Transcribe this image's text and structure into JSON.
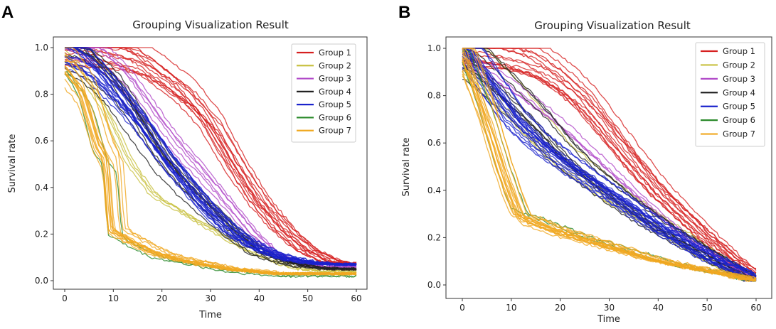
{
  "panels": [
    {
      "letter": "A"
    },
    {
      "letter": "B"
    }
  ],
  "chart_data": [
    {
      "type": "line",
      "title": "Grouping Visualization Result",
      "xlabel": "Time",
      "ylabel": "Survival rate",
      "xlim": [
        0,
        60
      ],
      "ylim": [
        0.0,
        1.0
      ],
      "xticks": [
        "0",
        "10",
        "20",
        "30",
        "40",
        "50",
        "60"
      ],
      "yticks": [
        "0.0",
        "0.2",
        "0.4",
        "0.6",
        "0.8",
        "1.0"
      ],
      "legend_position": "top-right",
      "series": [
        {
          "name": "Group 1",
          "color": "#d62020",
          "count": 14,
          "x": [
            0,
            5,
            10,
            15,
            20,
            25,
            30,
            35,
            40,
            45,
            50,
            55,
            60
          ],
          "y": [
            1.0,
            0.99,
            0.98,
            0.95,
            0.88,
            0.8,
            0.68,
            0.5,
            0.34,
            0.22,
            0.13,
            0.08,
            0.07
          ]
        },
        {
          "name": "Group 2",
          "color": "#c8c040",
          "count": 4,
          "x": [
            0,
            5,
            10,
            15,
            20,
            25,
            30,
            35,
            40,
            45,
            50,
            55,
            60
          ],
          "y": [
            0.98,
            0.88,
            0.72,
            0.5,
            0.36,
            0.3,
            0.24,
            0.18,
            0.12,
            0.08,
            0.05,
            0.04,
            0.04
          ]
        },
        {
          "name": "Group 3",
          "color": "#b048c8",
          "count": 6,
          "x": [
            0,
            5,
            10,
            15,
            20,
            25,
            30,
            35,
            40,
            45,
            50,
            55,
            60
          ],
          "y": [
            1.0,
            0.97,
            0.92,
            0.82,
            0.68,
            0.55,
            0.44,
            0.32,
            0.2,
            0.11,
            0.07,
            0.06,
            0.06
          ]
        },
        {
          "name": "Group 4",
          "color": "#222222",
          "count": 10,
          "x": [
            0,
            5,
            10,
            15,
            20,
            25,
            30,
            35,
            40,
            45,
            50,
            55,
            60
          ],
          "y": [
            0.99,
            0.94,
            0.84,
            0.68,
            0.52,
            0.4,
            0.3,
            0.2,
            0.12,
            0.08,
            0.06,
            0.05,
            0.05
          ]
        },
        {
          "name": "Group 5",
          "color": "#1a22cc",
          "count": 18,
          "x": [
            0,
            5,
            10,
            15,
            20,
            25,
            30,
            35,
            40,
            45,
            50,
            55,
            60
          ],
          "y": [
            0.99,
            0.93,
            0.82,
            0.7,
            0.55,
            0.42,
            0.3,
            0.2,
            0.14,
            0.1,
            0.08,
            0.07,
            0.07
          ]
        },
        {
          "name": "Group 6",
          "color": "#2a8a2a",
          "count": 2,
          "x": [
            0,
            5,
            8,
            10,
            11,
            15,
            20,
            25,
            30,
            35,
            40,
            45,
            50,
            55,
            60
          ],
          "y": [
            0.96,
            0.8,
            0.55,
            0.5,
            0.2,
            0.15,
            0.1,
            0.08,
            0.06,
            0.04,
            0.03,
            0.02,
            0.02,
            0.02,
            0.02
          ]
        },
        {
          "name": "Group 7",
          "color": "#f0a820",
          "count": 14,
          "x": [
            0,
            5,
            8,
            10,
            11,
            15,
            20,
            25,
            30,
            35,
            40,
            45,
            50,
            55,
            60
          ],
          "y": [
            0.96,
            0.82,
            0.6,
            0.52,
            0.22,
            0.17,
            0.12,
            0.09,
            0.07,
            0.05,
            0.04,
            0.03,
            0.03,
            0.03,
            0.03
          ]
        }
      ]
    },
    {
      "type": "line",
      "title": "Grouping Visualization Result",
      "xlabel": "Time",
      "ylabel": "Survival rate",
      "xlim": [
        0,
        60
      ],
      "ylim": [
        0.0,
        1.0
      ],
      "xticks": [
        "0",
        "10",
        "20",
        "30",
        "40",
        "50",
        "60"
      ],
      "yticks": [
        "0.0",
        "0.2",
        "0.4",
        "0.6",
        "0.8",
        "1.0"
      ],
      "legend_position": "top-right",
      "series": [
        {
          "name": "Group 1",
          "color": "#d62020",
          "count": 14,
          "x": [
            0,
            5,
            10,
            15,
            20,
            25,
            30,
            35,
            40,
            45,
            50,
            55,
            60
          ],
          "y": [
            1.0,
            0.99,
            0.97,
            0.94,
            0.87,
            0.78,
            0.65,
            0.52,
            0.4,
            0.3,
            0.2,
            0.11,
            0.03
          ]
        },
        {
          "name": "Group 2",
          "color": "#c8c040",
          "count": 4,
          "x": [
            0,
            5,
            10,
            15,
            20,
            25,
            30,
            35,
            40,
            45,
            50,
            55,
            60
          ],
          "y": [
            0.99,
            0.9,
            0.8,
            0.68,
            0.56,
            0.48,
            0.4,
            0.33,
            0.26,
            0.2,
            0.13,
            0.07,
            0.02
          ]
        },
        {
          "name": "Group 3",
          "color": "#b048c8",
          "count": 4,
          "x": [
            0,
            5,
            10,
            15,
            20,
            25,
            30,
            35,
            40,
            45,
            50,
            55,
            60
          ],
          "y": [
            0.99,
            0.95,
            0.88,
            0.8,
            0.72,
            0.62,
            0.52,
            0.42,
            0.32,
            0.23,
            0.15,
            0.08,
            0.02
          ]
        },
        {
          "name": "Group 4",
          "color": "#222222",
          "count": 10,
          "x": [
            0,
            5,
            10,
            15,
            20,
            25,
            30,
            35,
            40,
            45,
            50,
            55,
            60
          ],
          "y": [
            0.99,
            0.9,
            0.8,
            0.7,
            0.58,
            0.48,
            0.4,
            0.32,
            0.25,
            0.19,
            0.13,
            0.07,
            0.02
          ]
        },
        {
          "name": "Group 5",
          "color": "#1a22cc",
          "count": 18,
          "x": [
            0,
            5,
            10,
            15,
            20,
            25,
            30,
            35,
            40,
            45,
            50,
            55,
            60
          ],
          "y": [
            0.99,
            0.85,
            0.7,
            0.6,
            0.52,
            0.45,
            0.38,
            0.31,
            0.24,
            0.18,
            0.12,
            0.07,
            0.02
          ]
        },
        {
          "name": "Group 6",
          "color": "#2a8a2a",
          "count": 2,
          "x": [
            0,
            5,
            8,
            10,
            12,
            15,
            20,
            25,
            30,
            35,
            40,
            45,
            50,
            55,
            60
          ],
          "y": [
            0.98,
            0.72,
            0.52,
            0.4,
            0.3,
            0.28,
            0.24,
            0.2,
            0.17,
            0.14,
            0.11,
            0.08,
            0.06,
            0.04,
            0.02
          ]
        },
        {
          "name": "Group 7",
          "color": "#f0a820",
          "count": 16,
          "x": [
            0,
            5,
            8,
            10,
            12,
            15,
            20,
            25,
            30,
            35,
            40,
            45,
            50,
            55,
            60
          ],
          "y": [
            0.98,
            0.7,
            0.5,
            0.38,
            0.28,
            0.26,
            0.22,
            0.19,
            0.16,
            0.13,
            0.1,
            0.08,
            0.06,
            0.04,
            0.02
          ]
        }
      ]
    }
  ]
}
